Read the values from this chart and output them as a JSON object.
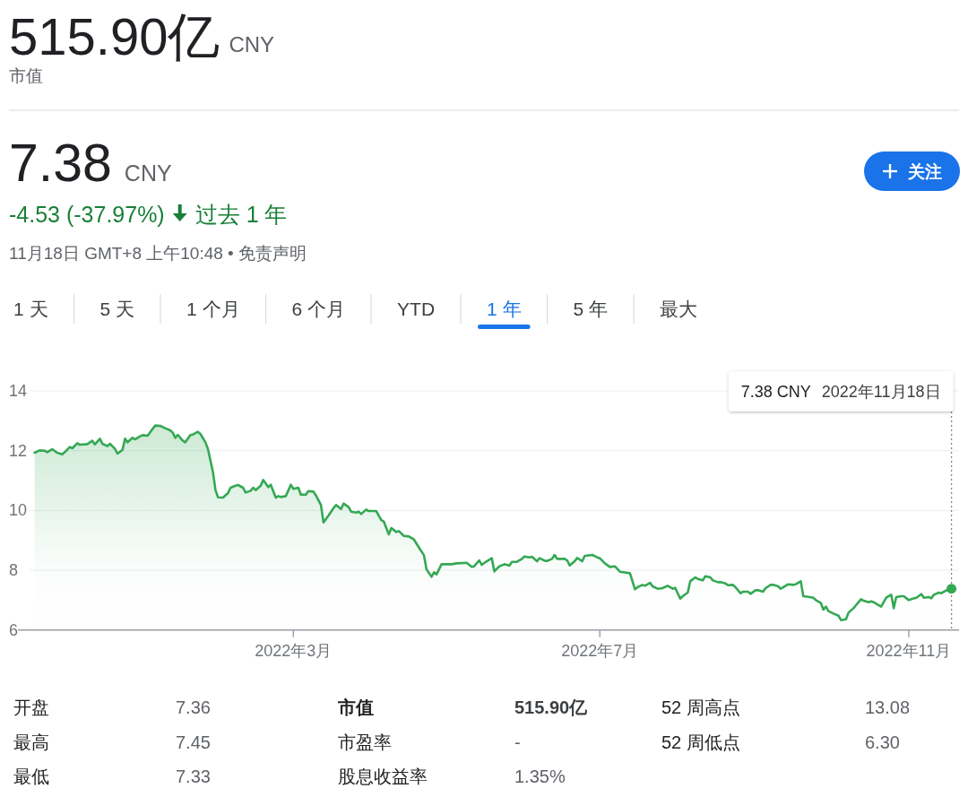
{
  "chart_data": {
    "type": "area",
    "title": "515.90亿",
    "subtitle": "市值",
    "annotations": [
      "CNY",
      "7.38",
      "CNY",
      "-4.53 (-37.97%)",
      "过去 1 年",
      "11月18日 GMT+8 上午10:48 • 免责声明",
      "1 天",
      "5 天",
      "1 个月",
      "6 个月",
      "YTD",
      "1 年",
      "5 年",
      "最大",
      "关注",
      "7.38 CNY",
      "开盘",
      "7.36",
      "市值",
      "515.90亿",
      "52 周高点",
      "13.08",
      "最高",
      "7.45",
      "市盈率",
      "-",
      "52 周低点",
      "6.30",
      "最低",
      "7.33",
      "股息收益率",
      "1.35%"
    ],
    "x": [
      "2021-11-18",
      "2021-11-20",
      "2021-11-22",
      "2021-11-23",
      "2021-11-25",
      "2021-11-27",
      "2021-11-29",
      "2021-11-30",
      "2021-12-02",
      "2021-12-03",
      "2021-12-05",
      "2021-12-06",
      "2021-12-09",
      "2021-12-11",
      "2021-12-12",
      "2021-12-14",
      "2021-12-15",
      "2021-12-17",
      "2021-12-18",
      "2021-12-20",
      "2021-12-21",
      "2021-12-23",
      "2021-12-24",
      "2021-12-25",
      "2021-12-27",
      "2021-12-28",
      "2021-12-30",
      "2021-12-31",
      "2022-01-02",
      "2022-01-04",
      "2022-01-05",
      "2022-01-07",
      "2022-01-09",
      "2022-01-11",
      "2022-01-12",
      "2022-01-13",
      "2022-01-14",
      "2022-01-16",
      "2022-01-17",
      "2022-01-19",
      "2022-01-20",
      "2022-01-22",
      "2022-01-23",
      "2022-01-25",
      "2022-01-26",
      "2022-01-28",
      "2022-01-29",
      "2022-01-30",
      "2022-02-01",
      "2022-02-03",
      "2022-02-04",
      "2022-02-06",
      "2022-02-07",
      "2022-02-09",
      "2022-02-10",
      "2022-02-12",
      "2022-02-13",
      "2022-02-14",
      "2022-02-16",
      "2022-02-17",
      "2022-02-19",
      "2022-02-20",
      "2022-02-22",
      "2022-02-23",
      "2022-02-24",
      "2022-02-26",
      "2022-02-28",
      "2022-03-01",
      "2022-03-03",
      "2022-03-04",
      "2022-03-06",
      "2022-03-07",
      "2022-03-09",
      "2022-03-10",
      "2022-03-12",
      "2022-03-13",
      "2022-03-15",
      "2022-03-17",
      "2022-03-18",
      "2022-03-20",
      "2022-03-21",
      "2022-03-23",
      "2022-03-24",
      "2022-03-26",
      "2022-03-27",
      "2022-03-28",
      "2022-03-30",
      "2022-03-31",
      "2022-04-03",
      "2022-04-05",
      "2022-04-06",
      "2022-04-08",
      "2022-04-09",
      "2022-04-11",
      "2022-04-12",
      "2022-04-14",
      "2022-04-16",
      "2022-04-18",
      "2022-04-20",
      "2022-04-22",
      "2022-04-23",
      "2022-04-25",
      "2022-04-26",
      "2022-04-27",
      "2022-04-29",
      "2022-05-03",
      "2022-05-05",
      "2022-05-09",
      "2022-05-11",
      "2022-05-12",
      "2022-05-14",
      "2022-05-15",
      "2022-05-17",
      "2022-05-19",
      "2022-05-20",
      "2022-05-22",
      "2022-05-24",
      "2022-05-25",
      "2022-05-26",
      "2022-05-27",
      "2022-05-29",
      "2022-05-31",
      "2022-06-01",
      "2022-06-03",
      "2022-06-04",
      "2022-06-06",
      "2022-06-07",
      "2022-06-09",
      "2022-06-10",
      "2022-06-12",
      "2022-06-13",
      "2022-06-14",
      "2022-06-17",
      "2022-06-18",
      "2022-06-19",
      "2022-06-21",
      "2022-06-22",
      "2022-06-24",
      "2022-06-25",
      "2022-06-28",
      "2022-06-30",
      "2022-07-01",
      "2022-07-03",
      "2022-07-05",
      "2022-07-07",
      "2022-07-09",
      "2022-07-13",
      "2022-07-15",
      "2022-07-16",
      "2022-07-18",
      "2022-07-19",
      "2022-07-21",
      "2022-07-22",
      "2022-07-24",
      "2022-07-26",
      "2022-07-28",
      "2022-07-30",
      "2022-07-31",
      "2022-08-02",
      "2022-08-03",
      "2022-08-05",
      "2022-08-06",
      "2022-08-08",
      "2022-08-09",
      "2022-08-11",
      "2022-08-12",
      "2022-08-14",
      "2022-08-15",
      "2022-08-17",
      "2022-08-18",
      "2022-08-20",
      "2022-08-21",
      "2022-08-23",
      "2022-08-24",
      "2022-08-26",
      "2022-08-27",
      "2022-08-29",
      "2022-08-30",
      "2022-09-01",
      "2022-09-02",
      "2022-09-04",
      "2022-09-05",
      "2022-09-07",
      "2022-09-08",
      "2022-09-10",
      "2022-09-11",
      "2022-09-13",
      "2022-09-14",
      "2022-09-16",
      "2022-09-17",
      "2022-09-19",
      "2022-09-20",
      "2022-09-22",
      "2022-09-24",
      "2022-09-25",
      "2022-09-27",
      "2022-09-28",
      "2022-09-29",
      "2022-09-30",
      "2022-10-02",
      "2022-10-04",
      "2022-10-05",
      "2022-10-07",
      "2022-10-08",
      "2022-10-10",
      "2022-10-11",
      "2022-10-13",
      "2022-10-14",
      "2022-10-16",
      "2022-10-17",
      "2022-10-18",
      "2022-10-20",
      "2022-10-21",
      "2022-10-23",
      "2022-10-25",
      "2022-10-26",
      "2022-10-27",
      "2022-10-29",
      "2022-10-30",
      "2022-11-01",
      "2022-11-03",
      "2022-11-04",
      "2022-11-06",
      "2022-11-07",
      "2022-11-09",
      "2022-11-10",
      "2022-11-11",
      "2022-11-13",
      "2022-11-14",
      "2022-11-16",
      "2022-11-17",
      "2022-11-18"
    ],
    "values": [
      11.93,
      12.01,
      12.0,
      11.95,
      12.05,
      11.93,
      11.88,
      11.95,
      12.12,
      12.08,
      12.25,
      12.2,
      12.22,
      12.33,
      12.21,
      12.4,
      12.23,
      12.15,
      12.23,
      12.06,
      11.9,
      12.03,
      12.4,
      12.28,
      12.43,
      12.38,
      12.48,
      12.52,
      12.5,
      12.73,
      12.84,
      12.83,
      12.75,
      12.68,
      12.6,
      12.43,
      12.53,
      12.33,
      12.28,
      12.52,
      12.54,
      12.63,
      12.56,
      12.28,
      12.06,
      11.28,
      10.68,
      10.44,
      10.43,
      10.58,
      10.76,
      10.83,
      10.85,
      10.76,
      10.6,
      10.66,
      10.76,
      10.68,
      10.83,
      11.02,
      10.78,
      10.86,
      10.43,
      10.48,
      10.45,
      10.48,
      10.86,
      10.72,
      10.76,
      10.53,
      10.53,
      10.65,
      10.63,
      10.5,
      10.18,
      9.6,
      9.83,
      10.08,
      10.18,
      10.05,
      10.23,
      10.11,
      9.96,
      9.93,
      9.96,
      9.88,
      10.03,
      9.98,
      9.98,
      9.68,
      9.63,
      9.2,
      9.41,
      9.28,
      9.31,
      9.15,
      9.13,
      9.03,
      8.76,
      8.5,
      8.03,
      7.78,
      7.93,
      7.86,
      8.2,
      8.2,
      8.23,
      8.25,
      8.11,
      8.13,
      8.33,
      8.18,
      8.3,
      8.4,
      7.96,
      8.13,
      8.2,
      8.18,
      8.15,
      8.28,
      8.28,
      8.38,
      8.46,
      8.43,
      8.45,
      8.3,
      8.4,
      8.32,
      8.31,
      8.38,
      8.51,
      8.38,
      8.38,
      8.33,
      8.16,
      8.3,
      8.41,
      8.3,
      8.48,
      8.51,
      8.43,
      8.4,
      8.23,
      8.11,
      8.13,
      7.95,
      7.9,
      7.36,
      7.43,
      7.51,
      7.48,
      7.58,
      7.46,
      7.38,
      7.4,
      7.48,
      7.38,
      7.41,
      7.05,
      7.13,
      7.25,
      7.63,
      7.76,
      7.71,
      7.66,
      7.8,
      7.76,
      7.66,
      7.6,
      7.6,
      7.56,
      7.5,
      7.51,
      7.43,
      7.23,
      7.28,
      7.28,
      7.21,
      7.33,
      7.33,
      7.28,
      7.4,
      7.51,
      7.51,
      7.46,
      7.38,
      7.48,
      7.53,
      7.51,
      7.53,
      7.63,
      7.13,
      7.11,
      7.08,
      7.0,
      6.9,
      6.68,
      6.78,
      6.63,
      6.55,
      6.48,
      6.33,
      6.36,
      6.58,
      6.73,
      6.83,
      7.03,
      6.98,
      6.93,
      6.96,
      6.93,
      6.83,
      6.78,
      7.08,
      7.18,
      6.73,
      7.1,
      7.13,
      7.13,
      7.0,
      7.06,
      7.08,
      7.2,
      7.08,
      7.1,
      7.06,
      7.18,
      7.25,
      7.23,
      7.33,
      7.3,
      7.38
    ],
    "color": "#34a853",
    "xlim": [
      "2021-11-16",
      "2022-11-21"
    ],
    "xticks": [
      {
        "value": "2022-03-01",
        "label": "2022年3月"
      },
      {
        "value": "2022-07-01",
        "label": "2022年7月"
      },
      {
        "value": "2022-11-01",
        "label": "2022年11月"
      }
    ],
    "ylim": [
      6,
      14
    ],
    "yticks": [
      6,
      8,
      10,
      12,
      14
    ],
    "grid": "y",
    "ref_lines": [
      {
        "axis": "x",
        "value": "2022-11-18",
        "label": "2022年11月18日",
        "line_style": "dotted",
        "color": "#80868b"
      }
    ]
  }
}
